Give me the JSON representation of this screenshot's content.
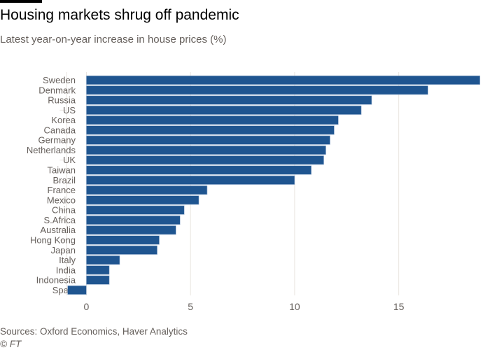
{
  "title": "Housing markets shrug off pandemic",
  "subtitle": "Latest year-on-year increase in house prices (%)",
  "source": "Sources: Oxford Economics, Haver Analytics",
  "credit": "© FT",
  "colors": {
    "bar": "#1f5590",
    "grid": "#e8e4df",
    "text": "#66605c"
  },
  "chart_data": {
    "type": "bar",
    "orientation": "horizontal",
    "title": "Housing markets shrug off pandemic",
    "subtitle": "Latest year-on-year increase in house prices (%)",
    "categories": [
      "Sweden",
      "Denmark",
      "Russia",
      "US",
      "Korea",
      "Canada",
      "Germany",
      "Netherlands",
      "UK",
      "Taiwan",
      "Brazil",
      "France",
      "Mexico",
      "China",
      "S.Africa",
      "Australia",
      "Hong Kong",
      "Japan",
      "Italy",
      "India",
      "Indonesia",
      "Spain"
    ],
    "values": [
      18.9,
      16.4,
      13.7,
      13.2,
      12.1,
      11.9,
      11.7,
      11.5,
      11.4,
      10.8,
      10.0,
      5.8,
      5.4,
      4.7,
      4.5,
      4.3,
      3.5,
      3.4,
      1.6,
      1.1,
      1.1,
      -0.9
    ],
    "xticks": [
      "0",
      "5",
      "10",
      "15"
    ],
    "xlim": [
      -0.95,
      19.2
    ],
    "grid": true,
    "xlabel": "",
    "ylabel": ""
  }
}
